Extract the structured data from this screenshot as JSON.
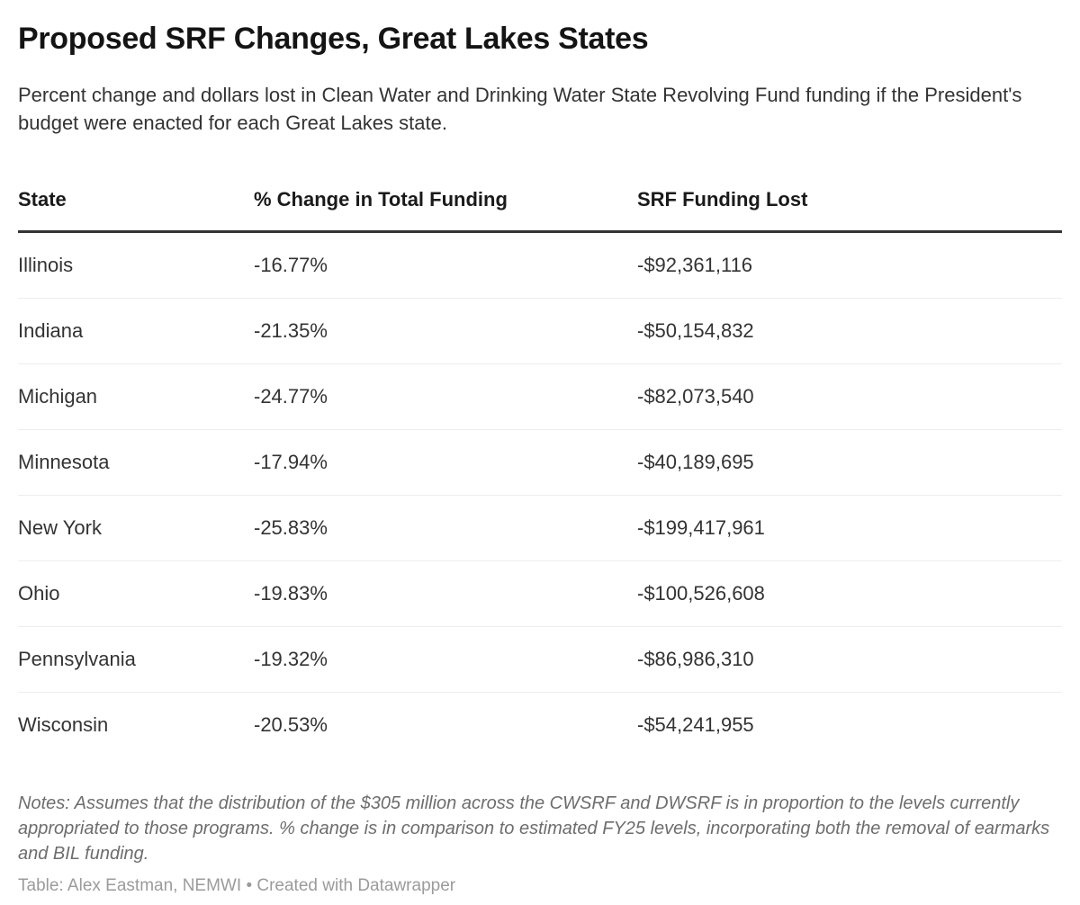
{
  "header": {
    "title": "Proposed SRF Changes, Great Lakes States",
    "subtitle": "Percent change and dollars lost in Clean Water and Drinking Water State Revolving Fund funding if the President's budget were enacted for each Great Lakes state."
  },
  "table": {
    "columns": [
      "State",
      "% Change in Total Funding",
      "SRF Funding Lost"
    ],
    "rows": [
      {
        "state": "Illinois",
        "pct_change": "-16.77%",
        "funding_lost": "-$92,361,116"
      },
      {
        "state": "Indiana",
        "pct_change": "-21.35%",
        "funding_lost": "-$50,154,832"
      },
      {
        "state": "Michigan",
        "pct_change": "-24.77%",
        "funding_lost": "-$82,073,540"
      },
      {
        "state": "Minnesota",
        "pct_change": "-17.94%",
        "funding_lost": "-$40,189,695"
      },
      {
        "state": "New York",
        "pct_change": "-25.83%",
        "funding_lost": "-$199,417,961"
      },
      {
        "state": "Ohio",
        "pct_change": "-19.83%",
        "funding_lost": "-$100,526,608"
      },
      {
        "state": "Pennsylvania",
        "pct_change": "-19.32%",
        "funding_lost": "-$86,986,310"
      },
      {
        "state": "Wisconsin",
        "pct_change": "-20.53%",
        "funding_lost": "-$54,241,955"
      }
    ]
  },
  "footer": {
    "notes": "Notes: Assumes that the distribution of the $305 million across the CWSRF and DWSRF is in proportion to the levels currently appropriated to those programs. % change is in comparison to estimated FY25 levels, incorporating both the removal of earmarks and BIL funding.",
    "attribution_prefix": "Table: Alex Eastman, NEMWI",
    "attribution_separator": "•",
    "attribution_link": "Created with Datawrapper"
  },
  "colors": {
    "background": "#ffffff",
    "title_text": "#141414",
    "body_text": "#333333",
    "header_rule": "#333333",
    "row_separator": "#ededed",
    "notes_text": "#6d6d6d",
    "attribution_text": "#9b9b9b"
  },
  "chart_data": {
    "type": "table",
    "title": "Proposed SRF Changes, Great Lakes States",
    "subtitle": "Percent change and dollars lost in Clean Water and Drinking Water State Revolving Fund funding if the President's budget were enacted for each Great Lakes state.",
    "columns": [
      "State",
      "% Change in Total Funding",
      "SRF Funding Lost"
    ],
    "rows": [
      {
        "state": "Illinois",
        "pct_change_in_total_funding": -16.77,
        "srf_funding_lost_usd": -92361116
      },
      {
        "state": "Indiana",
        "pct_change_in_total_funding": -21.35,
        "srf_funding_lost_usd": -50154832
      },
      {
        "state": "Michigan",
        "pct_change_in_total_funding": -24.77,
        "srf_funding_lost_usd": -82073540
      },
      {
        "state": "Minnesota",
        "pct_change_in_total_funding": -17.94,
        "srf_funding_lost_usd": -40189695
      },
      {
        "state": "New York",
        "pct_change_in_total_funding": -25.83,
        "srf_funding_lost_usd": -199417961
      },
      {
        "state": "Ohio",
        "pct_change_in_total_funding": -19.83,
        "srf_funding_lost_usd": -100526608
      },
      {
        "state": "Pennsylvania",
        "pct_change_in_total_funding": -19.32,
        "srf_funding_lost_usd": -86986310
      },
      {
        "state": "Wisconsin",
        "pct_change_in_total_funding": -20.53,
        "srf_funding_lost_usd": -54241955
      }
    ],
    "notes": "Notes: Assumes that the distribution of the $305 million across the CWSRF and DWSRF is in proportion to the levels currently appropriated to those programs. % change is in comparison to estimated FY25 levels, incorporating both the removal of earmarks and BIL funding.",
    "source": "Table: Alex Eastman, NEMWI • Created with Datawrapper"
  }
}
